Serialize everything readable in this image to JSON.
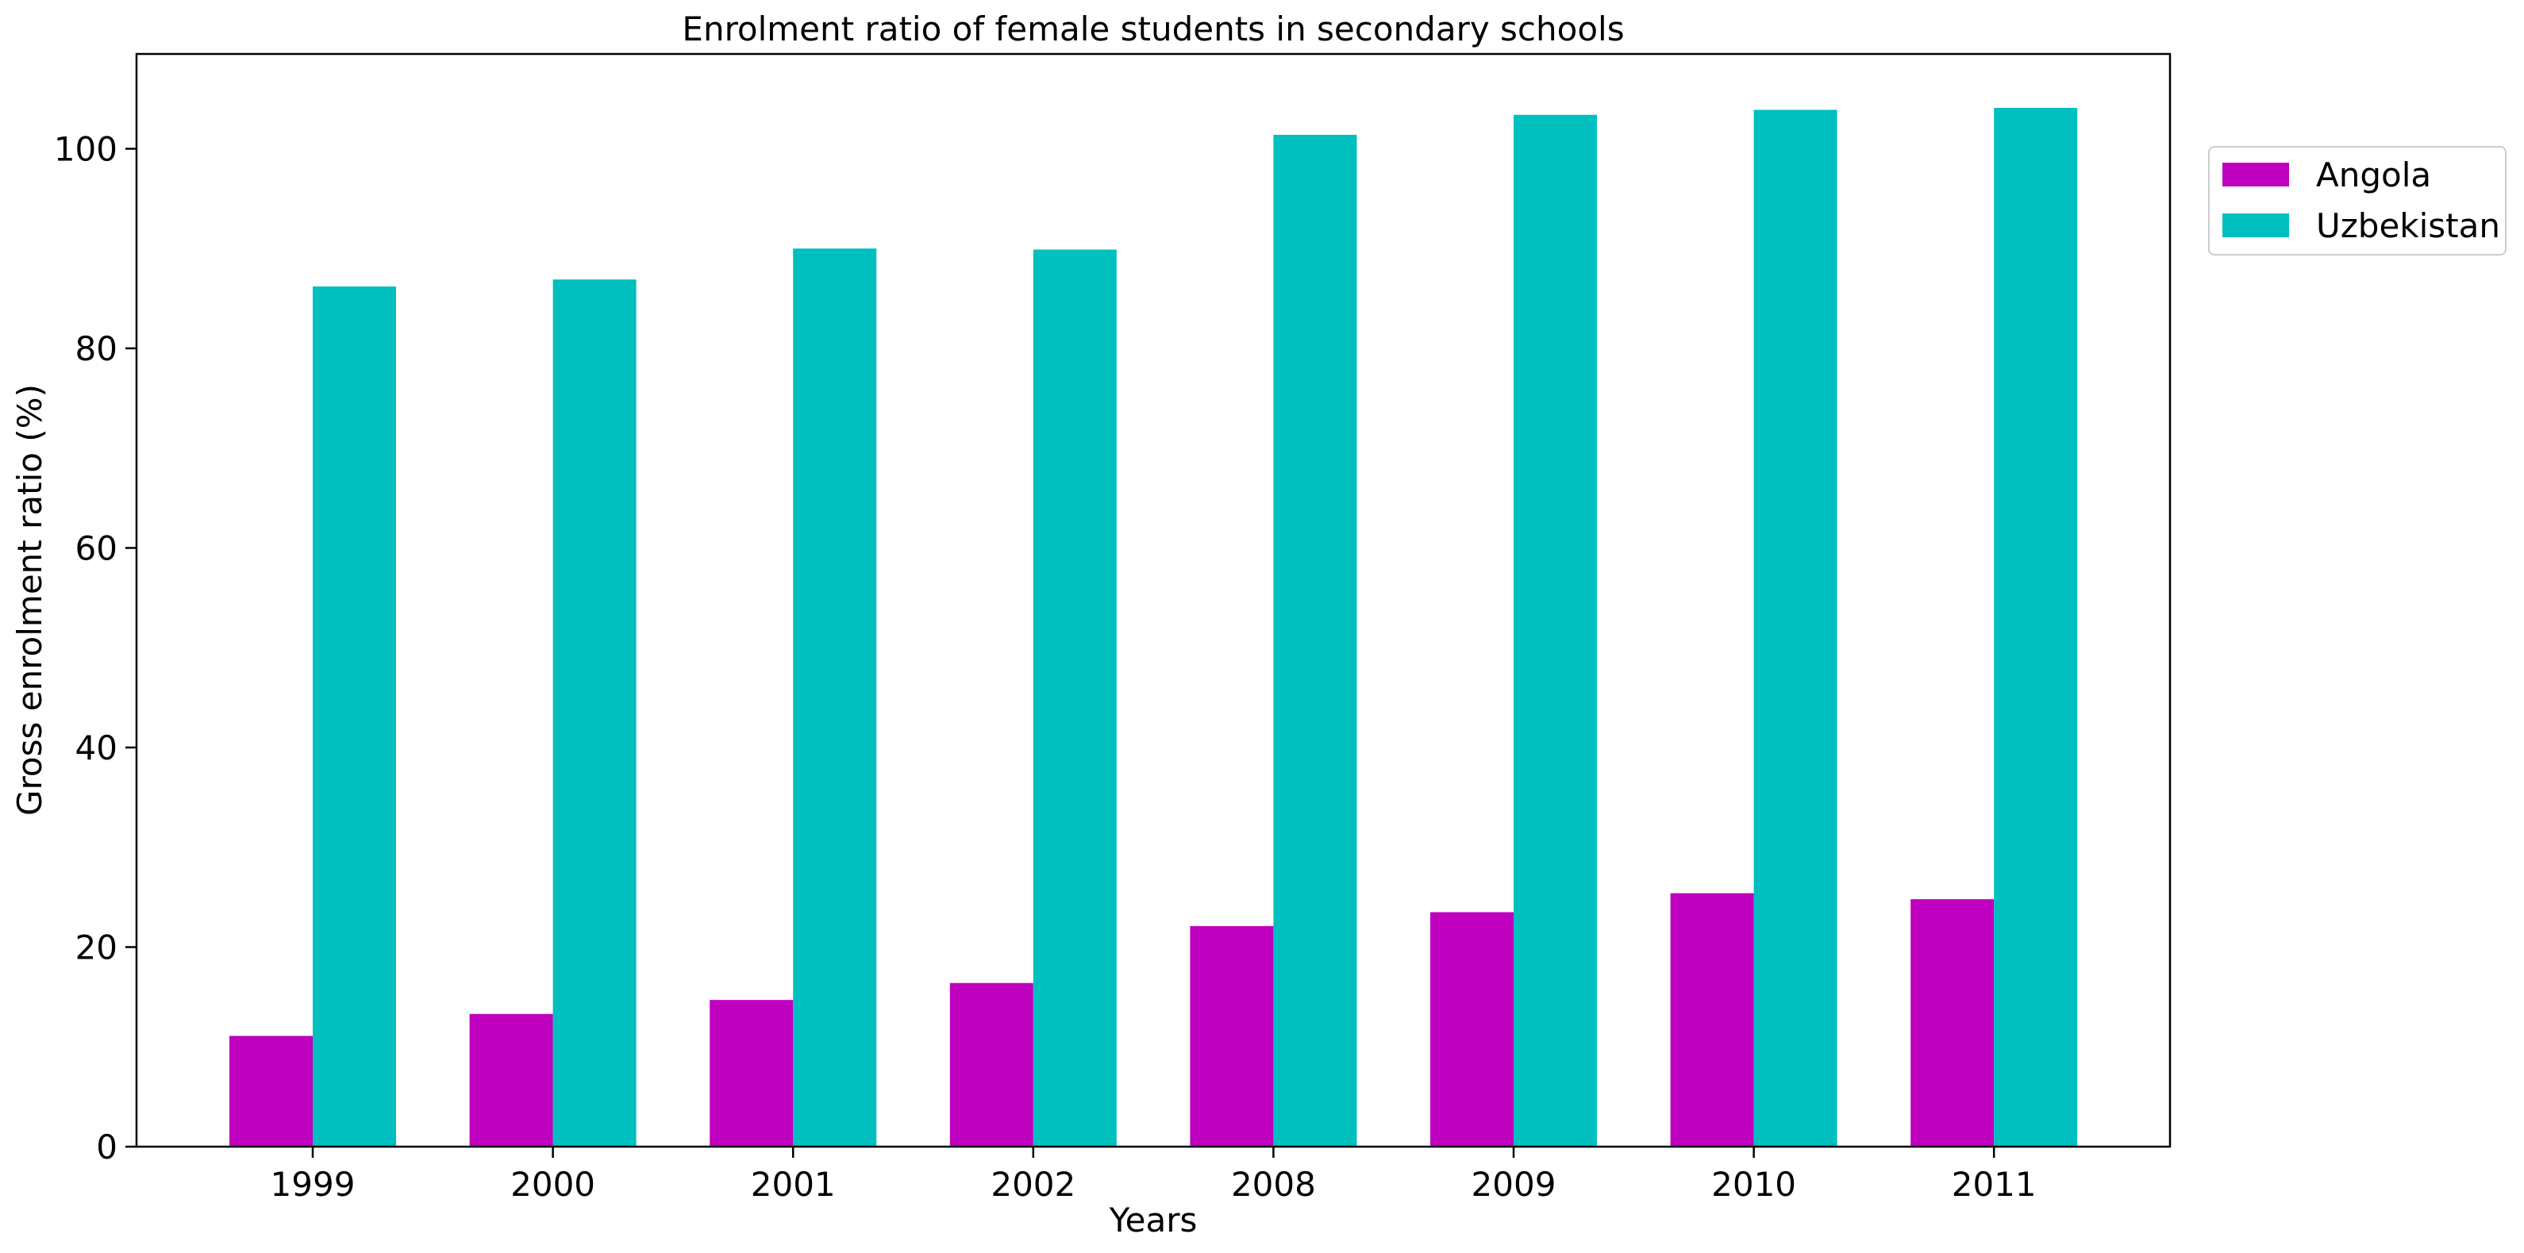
{
  "chart_data": {
    "type": "bar",
    "title": "Enrolment ratio of female students in secondary schools",
    "xlabel": "Years",
    "ylabel": "Gross enrolment ratio (%)",
    "categories": [
      "1999",
      "2000",
      "2001",
      "2002",
      "2008",
      "2009",
      "2010",
      "2011"
    ],
    "ylim": [
      0,
      109.5
    ],
    "yticks": [
      0,
      20,
      40,
      60,
      80,
      100
    ],
    "grid": false,
    "legend_position": "outside top-right",
    "series": [
      {
        "name": "Angola",
        "color": "#bf00bf",
        "values": [
          11.1,
          13.3,
          14.7,
          16.4,
          22.1,
          23.5,
          25.4,
          24.8
        ]
      },
      {
        "name": "Uzbekistan",
        "color": "#00bfbf",
        "values": [
          86.2,
          86.9,
          90.0,
          89.9,
          101.4,
          103.4,
          103.9,
          104.1
        ]
      }
    ]
  }
}
